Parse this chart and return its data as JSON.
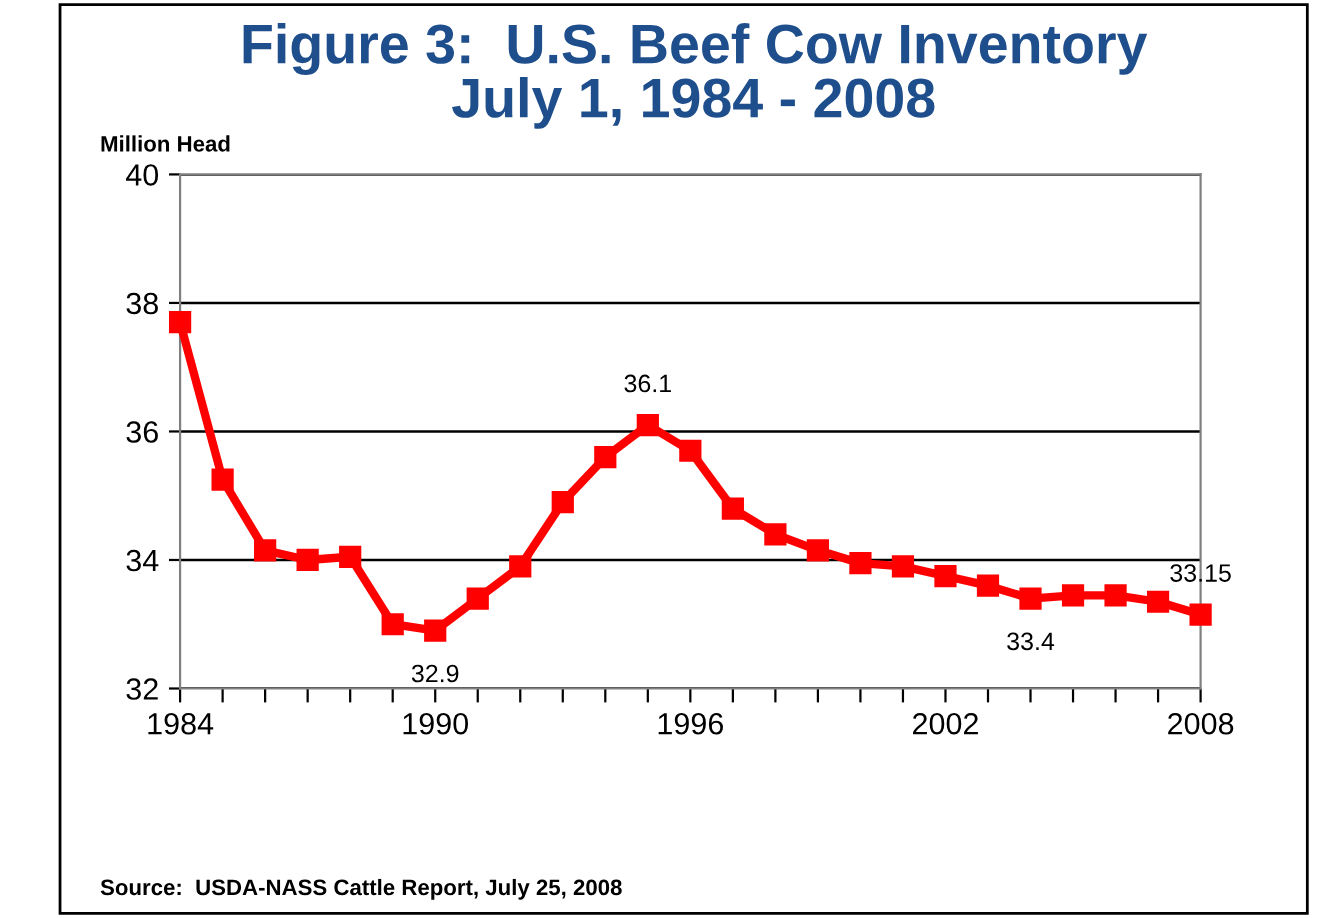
{
  "chart_data": {
    "type": "line",
    "title": "Figure 3:  U.S. Beef Cow Inventory\nJuly 1, 1984 - 2008",
    "ylabel": "Million Head",
    "annotations": [
      "Source:  USDA-NASS Cattle Report, July 25, 2008"
    ],
    "x": [
      1984,
      1985,
      1986,
      1987,
      1988,
      1989,
      1990,
      1991,
      1992,
      1993,
      1994,
      1995,
      1996,
      1997,
      1998,
      1999,
      2000,
      2001,
      2002,
      2003,
      2004,
      2005,
      2006,
      2007,
      2008
    ],
    "series": [
      {
        "color": "#ff0000",
        "values": [
          37.7,
          35.25,
          34.15,
          34.0,
          34.05,
          33.0,
          32.9,
          33.4,
          33.9,
          34.9,
          35.6,
          36.1,
          35.7,
          34.8,
          34.4,
          34.15,
          33.95,
          33.9,
          33.75,
          33.6,
          33.4,
          33.45,
          33.45,
          33.35,
          33.15
        ],
        "value_labels": [
          null,
          null,
          null,
          null,
          null,
          null,
          "32.9",
          null,
          null,
          null,
          null,
          "36.1",
          null,
          null,
          null,
          null,
          null,
          null,
          null,
          null,
          "33.4",
          null,
          null,
          null,
          "33.15"
        ]
      }
    ],
    "xlim": [
      1984,
      2008
    ],
    "ylim": [
      32,
      40
    ],
    "yticks": [
      32,
      34,
      36,
      38,
      40
    ],
    "xticks": [
      1984,
      {
        "value": 1985,
        "label": null
      },
      {
        "value": 1986,
        "label": null
      },
      {
        "value": 1987,
        "label": null
      },
      {
        "value": 1988,
        "label": null
      },
      {
        "value": 1989,
        "label": null
      },
      1990,
      {
        "value": 1991,
        "label": null
      },
      {
        "value": 1992,
        "label": null
      },
      {
        "value": 1993,
        "label": null
      },
      {
        "value": 1994,
        "label": null
      },
      {
        "value": 1995,
        "label": null
      },
      1996,
      {
        "value": 1997,
        "label": null
      },
      {
        "value": 1998,
        "label": null
      },
      {
        "value": 1999,
        "label": null
      },
      {
        "value": 2000,
        "label": null
      },
      {
        "value": 2001,
        "label": null
      },
      2002,
      {
        "value": 2003,
        "label": null
      },
      {
        "value": 2004,
        "label": null
      },
      {
        "value": 2005,
        "label": null
      },
      {
        "value": 2006,
        "label": null
      },
      {
        "value": 2007,
        "label": null
      },
      2008
    ],
    "grid": "y",
    "marker": "square",
    "line_style": "solid",
    "legend": false
  }
}
